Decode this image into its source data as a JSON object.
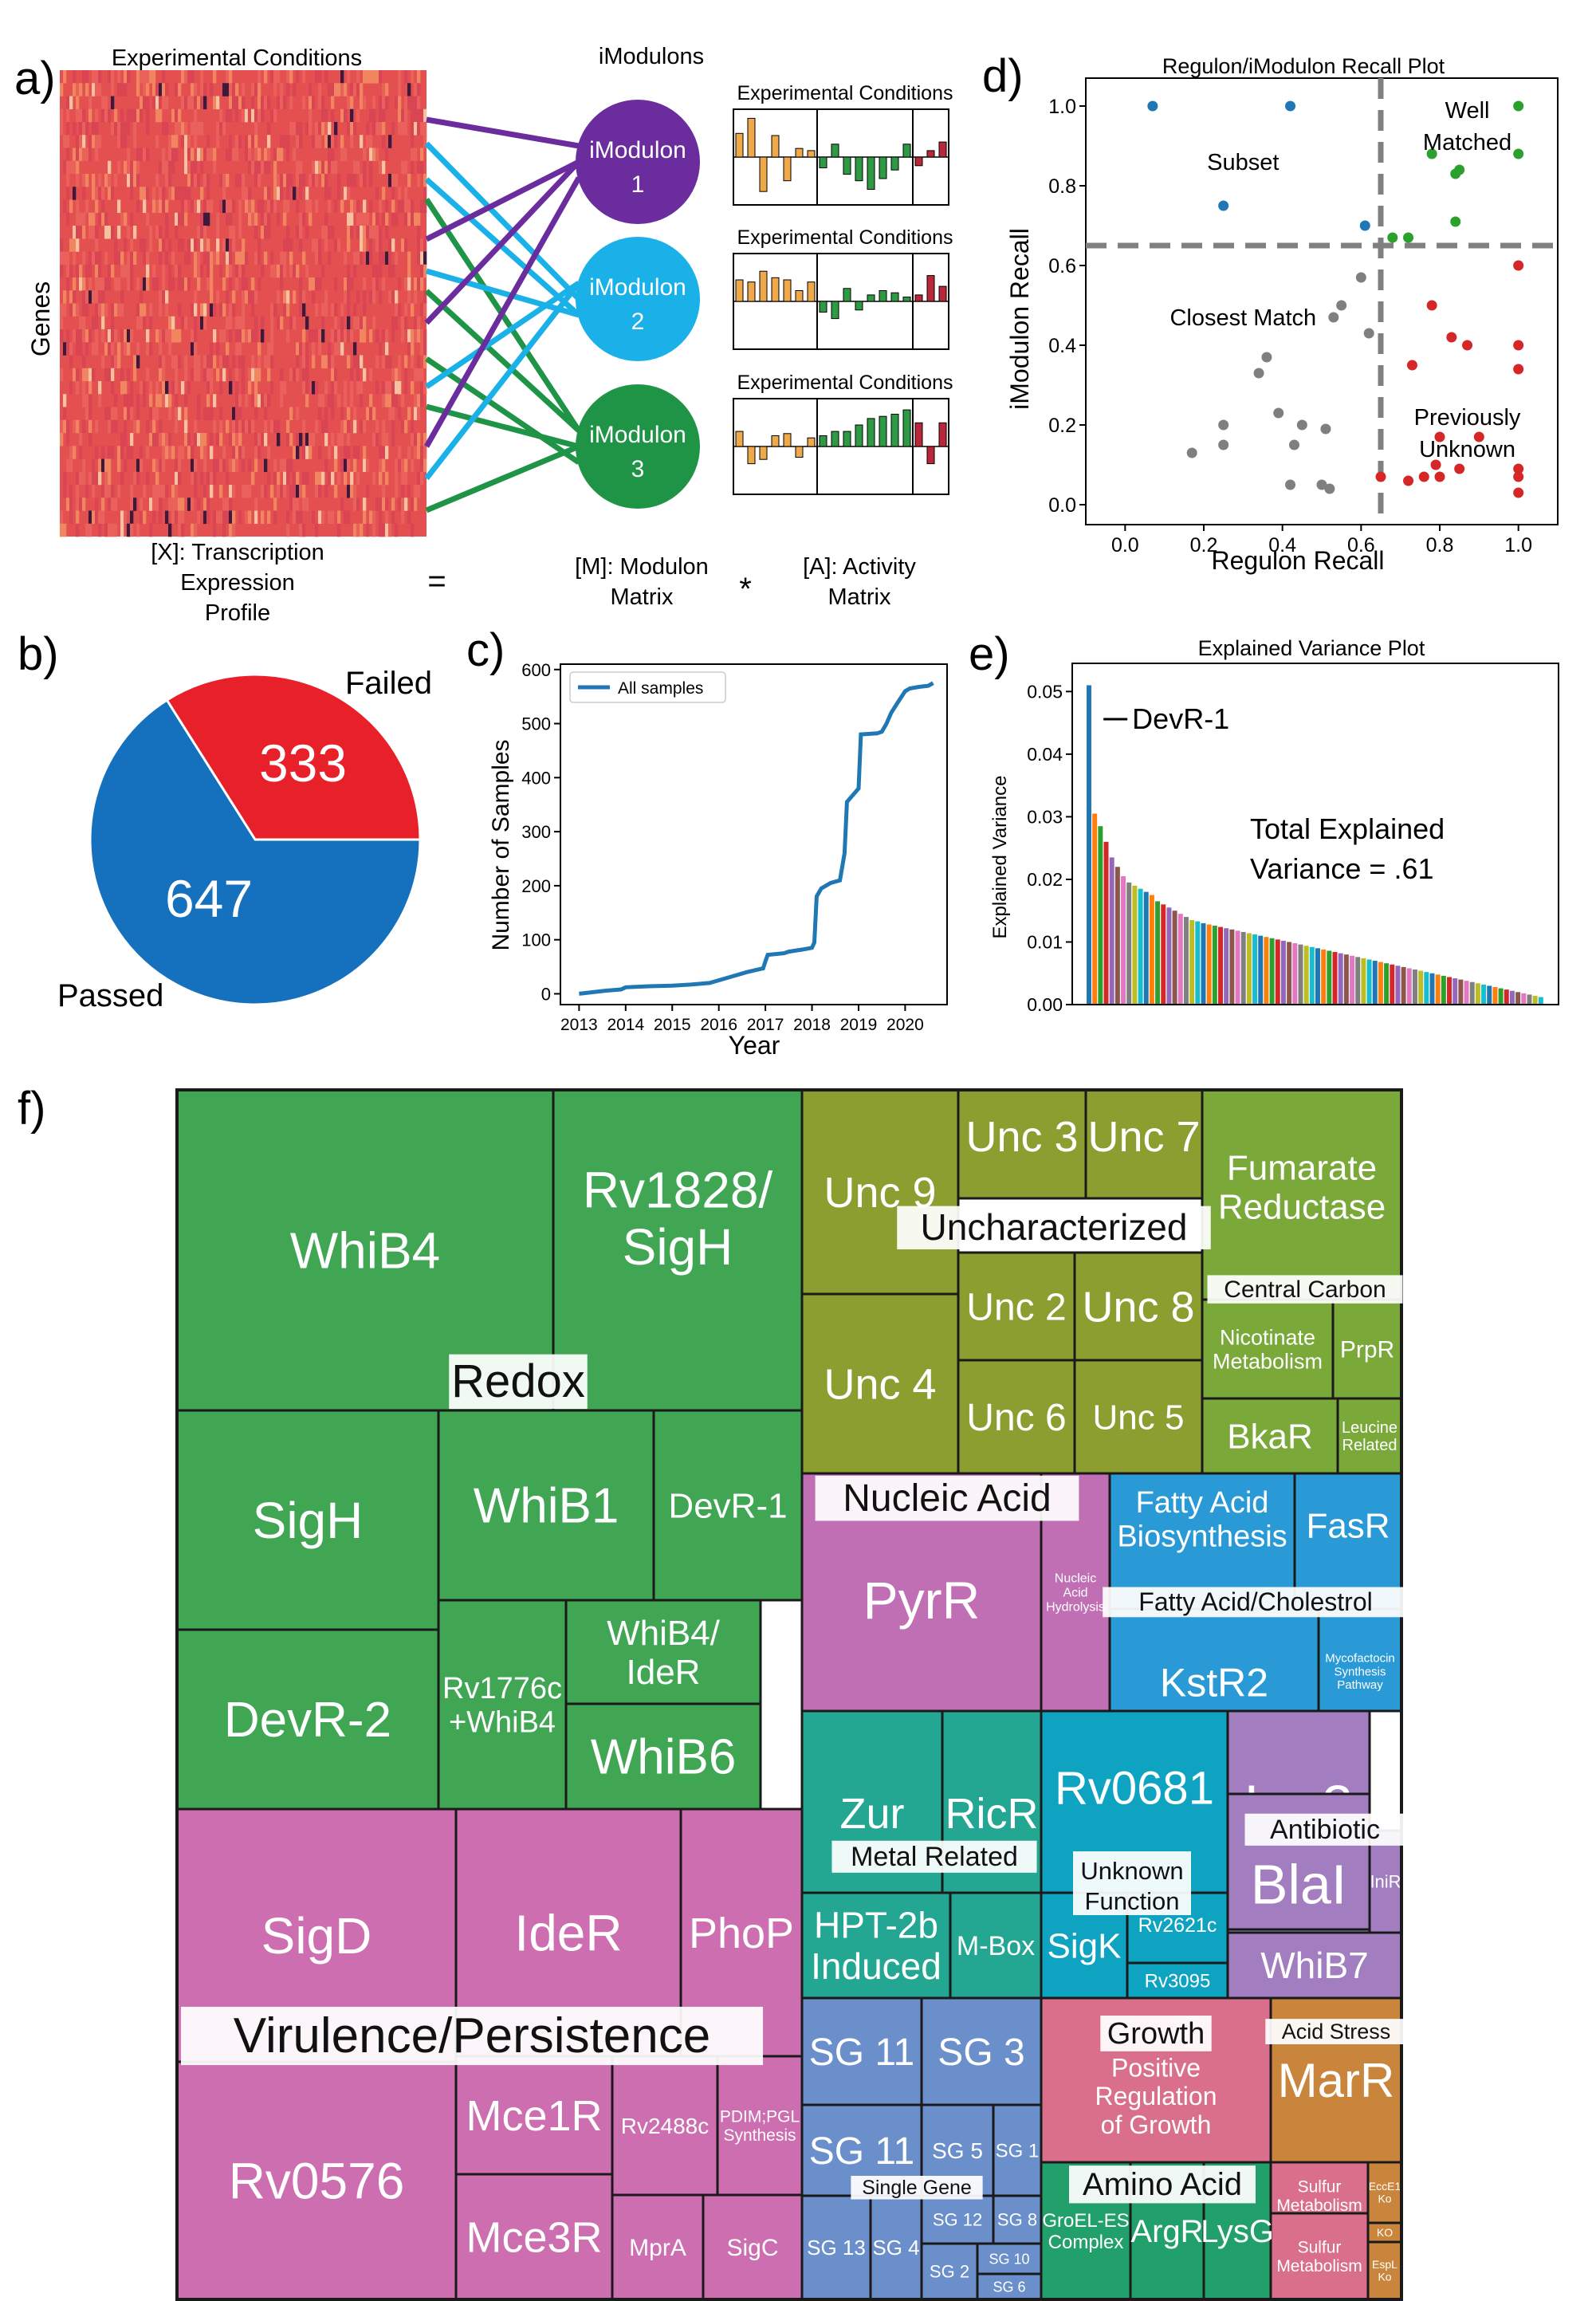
{
  "panel_labels": {
    "a": "a)",
    "b": "b)",
    "c": "c)",
    "d": "d)",
    "e": "e)",
    "f": "f)"
  },
  "panel_a": {
    "heatmap_title": "Experimental Conditions",
    "genes_label": "Genes",
    "x_label": [
      "[X]: Transcription",
      "Expression",
      "Profile"
    ],
    "equals": "=",
    "imodulons_title": "iModulons",
    "nodes": [
      {
        "name": "iModulon",
        "num": "1",
        "color": "#6b2d9e"
      },
      {
        "name": "iModulon",
        "num": "2",
        "color": "#1ab0e8"
      },
      {
        "name": "iModulon",
        "num": "3",
        "color": "#1f9447"
      }
    ],
    "m_label": [
      "[M]: Modulon",
      "Matrix"
    ],
    "times": "*",
    "a_label": [
      "[A]: Activity",
      "Matrix"
    ],
    "activity_titles": [
      "Experimental Conditions",
      "Experimental Conditions",
      "Experimental Conditions"
    ],
    "activity_colors": [
      "#f0a94a",
      "#2e9a44",
      "#b8283a"
    ],
    "activity_values": [
      [
        0.55,
        0.9,
        -0.8,
        0.5,
        -0.55,
        0.2,
        0.15,
        -0.25,
        0.3,
        -0.4,
        -0.55,
        -0.75,
        -0.5,
        -0.3,
        0.3,
        -0.2,
        0.15,
        0.35
      ],
      [
        0.5,
        0.45,
        0.7,
        0.55,
        0.5,
        0.25,
        0.45,
        -0.25,
        -0.4,
        0.3,
        -0.2,
        0.15,
        0.25,
        0.2,
        0.1,
        0.15,
        0.6,
        0.35
      ],
      [
        0.35,
        -0.4,
        -0.3,
        0.25,
        0.3,
        -0.25,
        0.2,
        0.25,
        0.35,
        0.35,
        0.5,
        0.65,
        0.7,
        0.75,
        0.85,
        0.55,
        -0.4,
        0.55
      ]
    ]
  },
  "panel_b": {
    "failed_label": "Failed",
    "passed_label": "Passed",
    "chart_data": {
      "type": "pie",
      "slices": [
        {
          "label": "Failed",
          "value": 333,
          "color": "#e8202a"
        },
        {
          "label": "Passed",
          "value": 647,
          "color": "#1570bd"
        }
      ]
    }
  },
  "panel_c": {
    "chart_data": {
      "type": "line",
      "xlabel": "Year",
      "ylabel": "Number of Samples",
      "xlim": [
        2012.6,
        2020.9
      ],
      "ylim": [
        -20,
        610
      ],
      "xticks": [
        "2013",
        "2014",
        "2015",
        "2016",
        "2017",
        "2018",
        "2019",
        "2020"
      ],
      "yticks": [
        "0",
        "100",
        "200",
        "300",
        "400",
        "500",
        "600"
      ],
      "legend": "All samples",
      "color": "#1f77b4",
      "series": [
        {
          "name": "All samples",
          "x": [
            2013.0,
            2013.6,
            2013.9,
            2014.0,
            2014.5,
            2015.0,
            2015.4,
            2015.8,
            2016.2,
            2016.6,
            2016.8,
            2016.95,
            2017.0,
            2017.05,
            2017.4,
            2017.5,
            2017.8,
            2018.0,
            2018.05,
            2018.1,
            2018.2,
            2018.4,
            2018.6,
            2018.7,
            2018.75,
            2018.85,
            2019.0,
            2019.05,
            2019.4,
            2019.5,
            2019.6,
            2019.7,
            2019.85,
            2020.0,
            2020.1,
            2020.3,
            2020.5,
            2020.6
          ],
          "y": [
            0,
            6,
            8,
            12,
            14,
            15,
            17,
            20,
            30,
            40,
            44,
            47,
            60,
            72,
            75,
            78,
            82,
            85,
            95,
            180,
            195,
            205,
            210,
            260,
            355,
            365,
            380,
            480,
            482,
            485,
            500,
            520,
            540,
            560,
            565,
            568,
            570,
            575
          ]
        }
      ]
    }
  },
  "panel_d": {
    "chart_data": {
      "type": "scatter",
      "title": "Regulon/iModulon Recall Plot",
      "xlabel": "Regulon Recall",
      "ylabel": "iModulon Recall",
      "xlim": [
        -0.1,
        1.1
      ],
      "ylim": [
        -0.05,
        1.07
      ],
      "xticks": [
        "0.0",
        "0.2",
        "0.4",
        "0.6",
        "0.8",
        "1.0"
      ],
      "yticks": [
        "0.0",
        "0.2",
        "0.4",
        "0.6",
        "0.8",
        "1.0"
      ],
      "thresholds": {
        "x": 0.65,
        "y": 0.65
      },
      "annotations": [
        {
          "lines": [
            "Subset"
          ],
          "x": 0.3,
          "y": 0.84
        },
        {
          "lines": [
            "Well",
            "Matched"
          ],
          "x": 0.87,
          "y": 0.97
        },
        {
          "lines": [
            "Closest Match"
          ],
          "x": 0.3,
          "y": 0.45
        },
        {
          "lines": [
            "Previously",
            "Unknown"
          ],
          "x": 0.87,
          "y": 0.2
        }
      ],
      "series": [
        {
          "name": "Subset",
          "color": "#1f77b4",
          "points": [
            [
              0.07,
              1.0
            ],
            [
              0.42,
              1.0
            ],
            [
              0.25,
              0.75
            ],
            [
              0.61,
              0.7
            ]
          ]
        },
        {
          "name": "Well Matched",
          "color": "#2ca02c",
          "points": [
            [
              1.0,
              1.0
            ],
            [
              0.78,
              0.88
            ],
            [
              0.84,
              0.83
            ],
            [
              0.85,
              0.84
            ],
            [
              1.0,
              0.88
            ],
            [
              0.84,
              0.71
            ],
            [
              0.68,
              0.67
            ],
            [
              0.72,
              0.67
            ]
          ]
        },
        {
          "name": "Closest Match",
          "color": "#7f7f7f",
          "points": [
            [
              0.6,
              0.57
            ],
            [
              0.55,
              0.5
            ],
            [
              0.53,
              0.47
            ],
            [
              0.62,
              0.43
            ],
            [
              0.36,
              0.37
            ],
            [
              0.34,
              0.33
            ],
            [
              0.39,
              0.23
            ],
            [
              0.45,
              0.2
            ],
            [
              0.51,
              0.19
            ],
            [
              0.25,
              0.2
            ],
            [
              0.25,
              0.15
            ],
            [
              0.17,
              0.13
            ],
            [
              0.43,
              0.15
            ],
            [
              0.42,
              0.05
            ],
            [
              0.5,
              0.05
            ],
            [
              0.52,
              0.04
            ]
          ]
        },
        {
          "name": "Previously Unknown",
          "color": "#d62728",
          "points": [
            [
              1.0,
              0.6
            ],
            [
              0.78,
              0.5
            ],
            [
              0.83,
              0.42
            ],
            [
              0.87,
              0.4
            ],
            [
              0.73,
              0.35
            ],
            [
              1.0,
              0.4
            ],
            [
              1.0,
              0.34
            ],
            [
              0.8,
              0.17
            ],
            [
              0.9,
              0.17
            ],
            [
              0.79,
              0.1
            ],
            [
              0.85,
              0.09
            ],
            [
              0.76,
              0.07
            ],
            [
              0.8,
              0.07
            ],
            [
              0.72,
              0.06
            ],
            [
              0.65,
              0.07
            ],
            [
              1.0,
              0.07
            ],
            [
              1.0,
              0.03
            ],
            [
              1.0,
              0.09
            ]
          ]
        }
      ]
    }
  },
  "panel_e": {
    "chart_data": {
      "type": "bar",
      "title": "Explained Variance Plot",
      "ylabel": "Explained Variance",
      "ylim": [
        0,
        0.0545
      ],
      "yticks": [
        "0.00",
        "0.01",
        "0.02",
        "0.03",
        "0.04",
        "0.05"
      ],
      "first_label": "DevR-1",
      "total_lines": [
        "Total Explained",
        "Variance = .61"
      ],
      "bar_colors": [
        "#1f77b4",
        "#ff7f0e",
        "#2ca02c",
        "#d62728",
        "#9467bd",
        "#8c564b",
        "#e377c2",
        "#7f7f7f",
        "#bcbd22",
        "#17becf"
      ],
      "values": [
        0.051,
        0.0305,
        0.0285,
        0.026,
        0.0235,
        0.022,
        0.0205,
        0.0195,
        0.019,
        0.0185,
        0.018,
        0.0175,
        0.0165,
        0.016,
        0.0155,
        0.015,
        0.0145,
        0.014,
        0.0135,
        0.0133,
        0.013,
        0.0128,
        0.0126,
        0.0124,
        0.0122,
        0.012,
        0.0118,
        0.0116,
        0.0114,
        0.0112,
        0.011,
        0.0108,
        0.0106,
        0.0104,
        0.0102,
        0.01,
        0.0098,
        0.0096,
        0.0094,
        0.0092,
        0.009,
        0.0088,
        0.0086,
        0.0084,
        0.0082,
        0.008,
        0.0078,
        0.0076,
        0.0074,
        0.0072,
        0.007,
        0.0068,
        0.0066,
        0.0064,
        0.0062,
        0.006,
        0.0058,
        0.0056,
        0.0054,
        0.0052,
        0.005,
        0.0048,
        0.0046,
        0.0044,
        0.0042,
        0.004,
        0.0038,
        0.0036,
        0.0034,
        0.0032,
        0.003,
        0.0028,
        0.0026,
        0.0024,
        0.0022,
        0.002,
        0.0018,
        0.0016,
        0.0014,
        0.0012
      ]
    }
  },
  "panel_f": {
    "categories": [
      {
        "label": "Redox",
        "color": "#40a653"
      },
      {
        "label": "Virulence/Persistence",
        "color": "#cc6eb0"
      },
      {
        "label": "Uncharacterized",
        "color": "#8c9e30"
      },
      {
        "label": "Central Carbon",
        "color": "#7aa93a"
      },
      {
        "label": "Nucleic Acid",
        "color": "#c06fb5"
      },
      {
        "label": "Fatty Acid/Cholestrol",
        "color": "#2a9ad6"
      },
      {
        "label": "Metal Related",
        "color": "#23a793"
      },
      {
        "label": "Unknown Function",
        "color": "#0fa3c2"
      },
      {
        "label": "Antibiotic",
        "color": "#a27dbf"
      },
      {
        "label": "Single Gene",
        "color": "#6a8fcb"
      },
      {
        "label": "Growth",
        "color": "#d96f8a"
      },
      {
        "label": "Acid Stress",
        "color": "#c9853c"
      },
      {
        "label": "Amino Acid",
        "color": "#22a06b"
      }
    ],
    "tiles": [
      {
        "id": "WhiB4",
        "lines": [
          "WhiB4"
        ]
      },
      {
        "id": "Rv1828",
        "lines": [
          "Rv1828/",
          "SigH"
        ]
      },
      {
        "id": "SigH",
        "lines": [
          "SigH"
        ]
      },
      {
        "id": "WhiB1",
        "lines": [
          "WhiB1"
        ]
      },
      {
        "id": "DevR-1",
        "lines": [
          "DevR-1"
        ]
      },
      {
        "id": "DevR-2",
        "lines": [
          "DevR-2"
        ]
      },
      {
        "id": "Rv1776c",
        "lines": [
          "Rv1776c",
          "+WhiB4"
        ]
      },
      {
        "id": "WhiB4IdeR",
        "lines": [
          "WhiB4/",
          "IdeR"
        ]
      },
      {
        "id": "WhiB6",
        "lines": [
          "WhiB6"
        ]
      },
      {
        "id": "SigD",
        "lines": [
          "SigD"
        ]
      },
      {
        "id": "IdeR",
        "lines": [
          "IdeR"
        ]
      },
      {
        "id": "PhoP",
        "lines": [
          "PhoP"
        ]
      },
      {
        "id": "Rv0576",
        "lines": [
          "Rv0576"
        ]
      },
      {
        "id": "Mce1R",
        "lines": [
          "Mce1R"
        ]
      },
      {
        "id": "Rv2488c",
        "lines": [
          "Rv2488c"
        ]
      },
      {
        "id": "PDIM",
        "lines": [
          "PDIM;PGL",
          "Synthesis"
        ]
      },
      {
        "id": "Mce3R",
        "lines": [
          "Mce3R"
        ]
      },
      {
        "id": "MprA",
        "lines": [
          "MprA"
        ]
      },
      {
        "id": "SigC",
        "lines": [
          "SigC"
        ]
      },
      {
        "id": "Unc9",
        "lines": [
          "Unc 9"
        ]
      },
      {
        "id": "Unc3",
        "lines": [
          "Unc 3"
        ]
      },
      {
        "id": "Unc7",
        "lines": [
          "Unc 7"
        ]
      },
      {
        "id": "Unc2",
        "lines": [
          "Unc 2"
        ]
      },
      {
        "id": "Unc8",
        "lines": [
          "Unc 8"
        ]
      },
      {
        "id": "Unc4",
        "lines": [
          "Unc 4"
        ]
      },
      {
        "id": "Unc6",
        "lines": [
          "Unc 6"
        ]
      },
      {
        "id": "Unc5",
        "lines": [
          "Unc 5"
        ]
      },
      {
        "id": "Fumarate",
        "lines": [
          "Fumarate",
          "Reductase"
        ]
      },
      {
        "id": "Nicotinate",
        "lines": [
          "Nicotinate",
          "Metabolism"
        ]
      },
      {
        "id": "PrpR",
        "lines": [
          "PrpR"
        ]
      },
      {
        "id": "BkaR",
        "lines": [
          "BkaR"
        ]
      },
      {
        "id": "Leucine",
        "lines": [
          "Leucine",
          "Related"
        ]
      },
      {
        "id": "PyrR",
        "lines": [
          "PyrR"
        ]
      },
      {
        "id": "NAHyd",
        "lines": [
          "Nucleic",
          "Acid",
          "Hydrolysis"
        ]
      },
      {
        "id": "FABio",
        "lines": [
          "Fatty Acid",
          "Biosynthesis"
        ]
      },
      {
        "id": "FasR",
        "lines": [
          "FasR"
        ]
      },
      {
        "id": "KstR2",
        "lines": [
          "KstR2"
        ]
      },
      {
        "id": "Mycofactocin",
        "lines": [
          "Mycofactocin",
          "Synthesis",
          "Pathway"
        ]
      },
      {
        "id": "Zur",
        "lines": [
          "Zur"
        ]
      },
      {
        "id": "RicR",
        "lines": [
          "RicR"
        ]
      },
      {
        "id": "HPT",
        "lines": [
          "HPT-2b",
          "Induced"
        ]
      },
      {
        "id": "MBox",
        "lines": [
          "M-Box"
        ]
      },
      {
        "id": "Rv0681",
        "lines": [
          "Rv0681"
        ]
      },
      {
        "id": "SigK",
        "lines": [
          "SigK"
        ]
      },
      {
        "id": "Rv2621c",
        "lines": [
          "Rv2621c"
        ]
      },
      {
        "id": "Rv3095",
        "lines": [
          "Rv3095"
        ]
      },
      {
        "id": "Lsr2",
        "lines": [
          "Lsr2"
        ]
      },
      {
        "id": "BlaI",
        "lines": [
          "BlaI"
        ]
      },
      {
        "id": "IniR",
        "lines": [
          "IniR"
        ]
      },
      {
        "id": "WhiB7",
        "lines": [
          "WhiB7"
        ]
      },
      {
        "id": "SG11a",
        "lines": [
          "SG 11"
        ]
      },
      {
        "id": "SG3",
        "lines": [
          "SG 3"
        ]
      },
      {
        "id": "SG11b",
        "lines": [
          "SG 11"
        ]
      },
      {
        "id": "SG5",
        "lines": [
          "SG 5"
        ]
      },
      {
        "id": "SG1",
        "lines": [
          "SG 1"
        ]
      },
      {
        "id": "SG13",
        "lines": [
          "SG 13"
        ]
      },
      {
        "id": "SG4",
        "lines": [
          "SG 4"
        ]
      },
      {
        "id": "SG12",
        "lines": [
          "SG 12"
        ]
      },
      {
        "id": "SG8",
        "lines": [
          "SG 8"
        ]
      },
      {
        "id": "SG2",
        "lines": [
          "SG 2"
        ]
      },
      {
        "id": "SG10",
        "lines": [
          "SG 10"
        ]
      },
      {
        "id": "SG6",
        "lines": [
          "SG 6"
        ]
      },
      {
        "id": "PosReg",
        "lines": [
          "Positive",
          "Regulation",
          "of Growth"
        ]
      },
      {
        "id": "MarR",
        "lines": [
          "MarR"
        ]
      },
      {
        "id": "Sulfur1",
        "lines": [
          "Sulfur",
          "Metabolism"
        ]
      },
      {
        "id": "Sulfur2",
        "lines": [
          "Sulfur",
          "Metabolism"
        ]
      },
      {
        "id": "EccE1",
        "lines": [
          "EccE1",
          "Ko"
        ]
      },
      {
        "id": "KO",
        "lines": [
          "KO"
        ]
      },
      {
        "id": "EspL",
        "lines": [
          "EspL",
          "Ko"
        ]
      },
      {
        "id": "GroEL",
        "lines": [
          "GroEL-ES",
          "Complex"
        ]
      },
      {
        "id": "ArgR",
        "lines": [
          "ArgR"
        ]
      },
      {
        "id": "LysG",
        "lines": [
          "LysG"
        ]
      }
    ]
  }
}
